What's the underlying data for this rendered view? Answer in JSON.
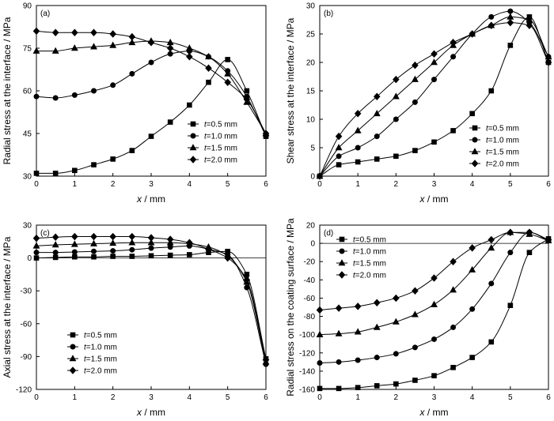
{
  "chart_data": [
    {
      "type": "line",
      "tag": "(a)",
      "ylabel": "Radial stress at the interface / MPa",
      "xlabel_var": "x",
      "xlabel_unit": " / mm",
      "xlim": [
        0,
        6
      ],
      "ylim": [
        30,
        90
      ],
      "xticks": [
        0,
        1,
        2,
        3,
        4,
        5,
        6
      ],
      "yticks": [
        30,
        45,
        60,
        75,
        90
      ],
      "legend": {
        "position": "lower-right"
      },
      "x": [
        0,
        0.5,
        1,
        1.5,
        2,
        2.5,
        3,
        3.5,
        4,
        4.5,
        5,
        5.5,
        6
      ],
      "series": [
        {
          "name": "t=0.5 mm",
          "marker": "square",
          "values": [
            31,
            31,
            32,
            34,
            36,
            39,
            44,
            49,
            55,
            63,
            71,
            60,
            44
          ]
        },
        {
          "name": "t=1.0 mm",
          "marker": "circle",
          "values": [
            58,
            57.5,
            58.5,
            60,
            62,
            66,
            70,
            73,
            74,
            72,
            67,
            58,
            44
          ]
        },
        {
          "name": "t=1.5 mm",
          "marker": "triangle",
          "values": [
            74,
            74,
            75,
            75.5,
            76,
            77,
            77.5,
            77,
            75,
            72,
            66,
            56,
            45
          ]
        },
        {
          "name": "t=2.0 mm",
          "marker": "diamond",
          "values": [
            81,
            80.5,
            80.5,
            80.5,
            80,
            79,
            77,
            75,
            72,
            68,
            63,
            57,
            45
          ]
        }
      ]
    },
    {
      "type": "line",
      "tag": "(b)",
      "ylabel": "Shear stress at the interface / MPa",
      "xlabel_var": "x",
      "xlabel_unit": " / mm",
      "xlim": [
        0,
        6
      ],
      "ylim": [
        0,
        30
      ],
      "xticks": [
        0,
        1,
        2,
        3,
        4,
        5,
        6
      ],
      "yticks": [
        0,
        5,
        10,
        15,
        20,
        25,
        30
      ],
      "legend": {
        "position": "lower-right"
      },
      "x": [
        0,
        0.5,
        1,
        1.5,
        2,
        2.5,
        3,
        3.5,
        4,
        4.5,
        5,
        5.5,
        6
      ],
      "series": [
        {
          "name": "t=0.5 mm",
          "marker": "square",
          "values": [
            0,
            2,
            2.5,
            3,
            3.5,
            4.5,
            6,
            8,
            11,
            15,
            23,
            28,
            20
          ]
        },
        {
          "name": "t=1.0 mm",
          "marker": "circle",
          "values": [
            0,
            3.5,
            5,
            7,
            10,
            13,
            17,
            21,
            25,
            28,
            29,
            27,
            21
          ]
        },
        {
          "name": "t=1.5 mm",
          "marker": "triangle",
          "values": [
            0,
            5,
            8,
            11,
            14,
            17,
            20,
            23,
            25,
            26.5,
            28,
            27.5,
            21
          ]
        },
        {
          "name": "t=2.0 mm",
          "marker": "diamond",
          "values": [
            0,
            7,
            11,
            14,
            17,
            19.5,
            21.5,
            23.5,
            25,
            26.5,
            27,
            26.5,
            20
          ]
        }
      ]
    },
    {
      "type": "line",
      "tag": "(c)",
      "ylabel": "Axial stress at the interface / MPa",
      "xlabel_var": "x",
      "xlabel_unit": " / mm",
      "xlim": [
        0,
        6
      ],
      "ylim": [
        -120,
        30
      ],
      "xticks": [
        0,
        1,
        2,
        3,
        4,
        5,
        6
      ],
      "yticks": [
        -120,
        -90,
        -60,
        -30,
        0,
        30
      ],
      "legend": {
        "position": "lower-left"
      },
      "x": [
        0,
        0.5,
        1,
        1.5,
        2,
        2.5,
        3,
        3.5,
        4,
        4.5,
        5,
        5.5,
        6
      ],
      "series": [
        {
          "name": "t=0.5 mm",
          "marker": "square",
          "values": [
            0,
            0.5,
            1,
            1,
            1.5,
            1.5,
            2,
            2.5,
            3,
            5,
            6,
            -15,
            -92
          ]
        },
        {
          "name": "t=1.0 mm",
          "marker": "circle",
          "values": [
            5,
            5,
            5.5,
            6,
            6.5,
            7.5,
            9,
            10,
            11,
            8,
            3,
            -27,
            -97
          ]
        },
        {
          "name": "t=1.5 mm",
          "marker": "triangle",
          "values": [
            11,
            12,
            12.5,
            13,
            13.5,
            14,
            14,
            14,
            13,
            10,
            2,
            -22,
            -95
          ]
        },
        {
          "name": "t=2.0 mm",
          "marker": "diamond",
          "values": [
            18,
            19,
            19.5,
            19.5,
            19.5,
            19.5,
            18.5,
            17,
            14,
            8,
            0,
            -20,
            -93
          ]
        }
      ]
    },
    {
      "type": "line",
      "tag": "(d)",
      "ylabel": "Radial stress on the coating surface / MPa",
      "xlabel_var": "x",
      "xlabel_unit": " / mm",
      "xlim": [
        0,
        6
      ],
      "ylim": [
        -160,
        20
      ],
      "xticks": [
        0,
        1,
        2,
        3,
        4,
        5,
        6
      ],
      "yticks": [
        -160,
        -140,
        -120,
        -100,
        -80,
        -60,
        -40,
        -20,
        0,
        20
      ],
      "legend": {
        "position": "top-left"
      },
      "x": [
        0,
        0.5,
        1,
        1.5,
        2,
        2.5,
        3,
        3.5,
        4,
        4.5,
        5,
        5.5,
        6
      ],
      "series": [
        {
          "name": "t=0.5 mm",
          "marker": "square",
          "values": [
            -159,
            -159,
            -158,
            -156,
            -154,
            -150,
            -145,
            -136,
            -125,
            -108,
            -68,
            -10,
            5
          ]
        },
        {
          "name": "t=1.0 mm",
          "marker": "circle",
          "values": [
            -131,
            -130,
            -128,
            -125,
            -121,
            -114,
            -105,
            -92,
            -72,
            -44,
            -10,
            12,
            3
          ]
        },
        {
          "name": "t=1.5 mm",
          "marker": "triangle",
          "values": [
            -100,
            -99,
            -97,
            -92,
            -86,
            -78,
            -67,
            -51,
            -29,
            -5,
            12,
            10,
            3
          ]
        },
        {
          "name": "t=2.0 mm",
          "marker": "diamond",
          "values": [
            -73,
            -71,
            -69,
            -65,
            -60,
            -52,
            -38,
            -20,
            -5,
            4,
            12,
            12,
            4
          ]
        }
      ]
    }
  ]
}
